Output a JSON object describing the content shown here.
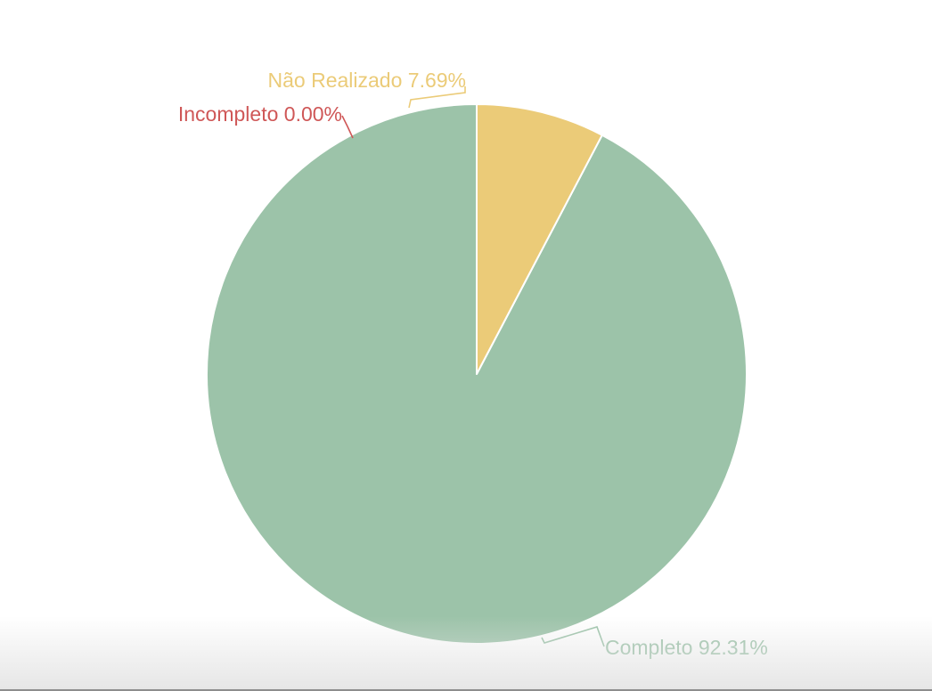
{
  "chart_data": {
    "type": "pie",
    "title": "",
    "start_angle_deg": 0,
    "direction": "counterclockwise",
    "colors": {
      "Completo": "#9cc3a9",
      "Incompleto": "#cf5757",
      "Não Realizado": "#ebcb78"
    },
    "slices": [
      {
        "label": "Completo",
        "value": 92.31,
        "color": "#9cc3a9",
        "display": "Completo 92.31%"
      },
      {
        "label": "Incompleto",
        "value": 0.0,
        "color": "#cf5757",
        "display": "Incompleto 0.00%"
      },
      {
        "label": "Não Realizado",
        "value": 7.69,
        "color": "#ebcb78",
        "display": "Não Realizado 7.69%"
      }
    ],
    "legend": "none"
  }
}
